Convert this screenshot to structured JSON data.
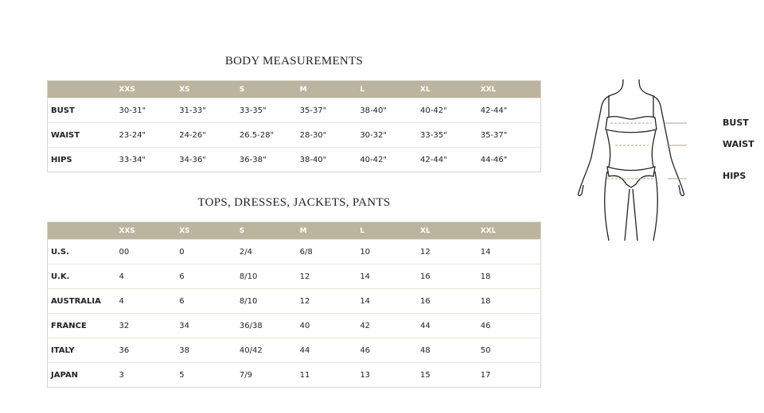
{
  "body_measurements": {
    "title": "BODY MEASUREMENTS",
    "sizes": [
      "XXS",
      "XS",
      "S",
      "M",
      "L",
      "XL",
      "XXL"
    ],
    "rows": [
      {
        "label": "BUST",
        "values": [
          "30-31\"",
          "31-33\"",
          "33-35\"",
          "35-37\"",
          "38-40\"",
          "40-42\"",
          "42-44\""
        ]
      },
      {
        "label": "WAIST",
        "values": [
          "23-24\"",
          "24-26\"",
          "26.5-28\"",
          "28-30\"",
          "30-32\"",
          "33-35\"",
          "35-37\""
        ]
      },
      {
        "label": "HIPS",
        "values": [
          "33-34\"",
          "34-36\"",
          "36-38\"",
          "38-40\"",
          "40-42\"",
          "42-44\"",
          "44-46\""
        ]
      }
    ]
  },
  "conversions": {
    "title": "TOPS, DRESSES, JACKETS, PANTS",
    "sizes": [
      "XXS",
      "XS",
      "S",
      "M",
      "L",
      "XL",
      "XXL"
    ],
    "rows": [
      {
        "label": "U.S.",
        "values": [
          "00",
          "0",
          "2/4",
          "6/8",
          "10",
          "12",
          "14"
        ]
      },
      {
        "label": "U.K.",
        "values": [
          "4",
          "6",
          "8/10",
          "12",
          "14",
          "16",
          "18"
        ]
      },
      {
        "label": "AUSTRALIA",
        "values": [
          "4",
          "6",
          "8/10",
          "12",
          "14",
          "16",
          "18"
        ]
      },
      {
        "label": "FRANCE",
        "values": [
          "32",
          "34",
          "36/38",
          "40",
          "42",
          "44",
          "46"
        ]
      },
      {
        "label": "ITALY",
        "values": [
          "36",
          "38",
          "40/42",
          "44",
          "46",
          "48",
          "50"
        ]
      },
      {
        "label": "JAPAN",
        "values": [
          "3",
          "5",
          "7/9",
          "11",
          "13",
          "15",
          "17"
        ]
      }
    ]
  },
  "figure": {
    "labels": [
      "BUST",
      "WAIST",
      "HIPS"
    ]
  },
  "colors": {
    "header": "#bbb59f",
    "guide": "#a8a496"
  }
}
